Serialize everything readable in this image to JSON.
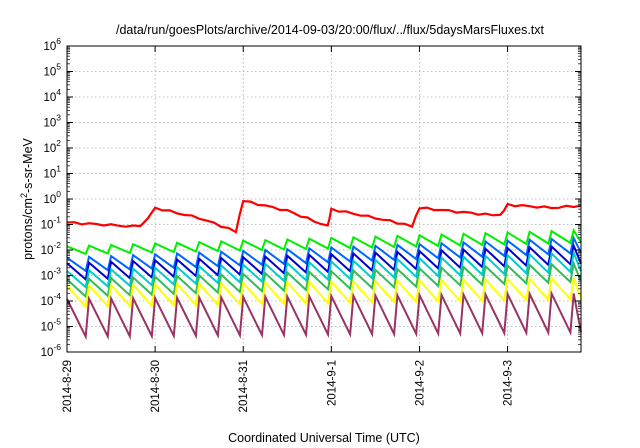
{
  "chart_data": {
    "type": "line",
    "title": "/data/run/goesPlots/archive/2014-09-03/20:00/flux/../flux/5daysMarsFluxes.txt",
    "xlabel": "Coordinated Universal Time (UTC)",
    "ylabel": {
      "base": "protons/cm",
      "sup": "2",
      "rest": "-s-sr-MeV"
    },
    "y_scale": "log",
    "ylim_exponent": [
      -6,
      6
    ],
    "y_ticks": [
      {
        "base": "10",
        "exp": "-6"
      },
      {
        "base": "10",
        "exp": "-5"
      },
      {
        "base": "10",
        "exp": "-4"
      },
      {
        "base": "10",
        "exp": "-3"
      },
      {
        "base": "10",
        "exp": "-2"
      },
      {
        "base": "10",
        "exp": "-1"
      },
      {
        "base": "10",
        "exp": "0"
      },
      {
        "base": "10",
        "exp": "1"
      },
      {
        "base": "10",
        "exp": "2"
      },
      {
        "base": "10",
        "exp": "3"
      },
      {
        "base": "10",
        "exp": "4"
      },
      {
        "base": "10",
        "exp": "5"
      },
      {
        "base": "10",
        "exp": "6"
      }
    ],
    "x_ticks": [
      "2014-8-29",
      "2014-8-30",
      "2014-8-31",
      "2014-9-1",
      "2014-9-2",
      "2014-9-3"
    ],
    "x_range": [
      "2014-08-29T00:00",
      "2014-09-03T20:00"
    ],
    "grid": true,
    "series": [
      {
        "color": "#ff0000",
        "jitter": 0.09,
        "sawtooth": false,
        "values": [
          [
            "2014-08-29T00:00",
            0.12
          ],
          [
            "2014-08-29T12:00",
            0.095
          ],
          [
            "2014-08-29T20:00",
            0.08
          ],
          [
            "2014-08-30T00:00",
            0.45
          ],
          [
            "2014-08-30T12:00",
            0.18
          ],
          [
            "2014-08-30T22:00",
            0.055
          ],
          [
            "2014-08-31T00:00",
            0.85
          ],
          [
            "2014-08-31T12:00",
            0.35
          ],
          [
            "2014-08-31T23:00",
            0.085
          ],
          [
            "2014-09-01T00:00",
            0.4
          ],
          [
            "2014-09-01T12:00",
            0.18
          ],
          [
            "2014-09-01T22:00",
            0.09
          ],
          [
            "2014-09-02T00:00",
            0.45
          ],
          [
            "2014-09-02T12:00",
            0.3
          ],
          [
            "2014-09-02T22:00",
            0.22
          ],
          [
            "2014-09-03T00:00",
            0.6
          ],
          [
            "2014-09-03T12:00",
            0.45
          ],
          [
            "2014-09-03T20:00",
            0.55
          ]
        ]
      },
      {
        "color": "#00ee00",
        "jitter": 0.0,
        "sawtooth": true,
        "peak": [
          0.014,
          0.06
        ],
        "trough": [
          0.007,
          0.02
        ],
        "period_hours": 6
      },
      {
        "color": "#0066ff",
        "jitter": 0.0,
        "sawtooth": true,
        "peak": [
          0.005,
          0.03
        ],
        "trough": [
          0.0015,
          0.008
        ],
        "period_hours": 6
      },
      {
        "color": "#0000cc",
        "jitter": 0.0,
        "sawtooth": true,
        "peak": [
          0.003,
          0.015
        ],
        "trough": [
          0.0007,
          0.003
        ],
        "period_hours": 6
      },
      {
        "color": "#00cccc",
        "jitter": 0.0,
        "sawtooth": true,
        "peak": [
          0.0015,
          0.008
        ],
        "trough": [
          0.00035,
          0.0015
        ],
        "period_hours": 6
      },
      {
        "color": "#33bb55",
        "jitter": 0.0,
        "sawtooth": true,
        "peak": [
          0.0007,
          0.003
        ],
        "trough": [
          0.00015,
          0.0006
        ],
        "period_hours": 6
      },
      {
        "color": "#ffff00",
        "jitter": 0.0,
        "sawtooth": true,
        "peak": [
          0.0004,
          0.0008
        ],
        "trough": [
          6e-05,
          0.00012
        ],
        "period_hours": 6
      },
      {
        "color": "#993366",
        "jitter": 0.0,
        "sawtooth": true,
        "peak": [
          0.00012,
          0.0002
        ],
        "trough": [
          4e-06,
          6e-06
        ],
        "period_hours": 6
      }
    ]
  }
}
